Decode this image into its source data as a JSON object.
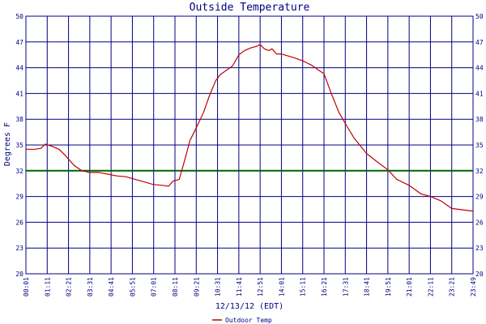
{
  "colors": {
    "background": "#ffffff",
    "grid": "#000080",
    "series": "#c00000",
    "reference_line": "#006400",
    "text": "#000080"
  },
  "chart_data": {
    "type": "line",
    "title": "Outside Temperature",
    "xlabel": "12/13/12 (EDT)",
    "ylabel": "Degrees F",
    "ylim": [
      20,
      50
    ],
    "yticks": [
      20,
      23,
      26,
      29,
      32,
      35,
      38,
      41,
      44,
      47,
      50
    ],
    "xticks": [
      "00:01",
      "01:11",
      "02:21",
      "03:31",
      "04:41",
      "05:51",
      "07:01",
      "08:11",
      "09:21",
      "10:31",
      "11:41",
      "12:51",
      "14:01",
      "15:11",
      "16:21",
      "17:31",
      "18:41",
      "19:51",
      "21:01",
      "22:11",
      "23:21",
      "23:49"
    ],
    "grid": true,
    "reference_line": 32,
    "legend_position": "bottom-left",
    "series": [
      {
        "name": "Outdoor Temp",
        "x": [
          "00:01",
          "00:30",
          "00:50",
          "01:05",
          "01:30",
          "01:50",
          "02:10",
          "02:40",
          "03:05",
          "03:31",
          "04:00",
          "04:30",
          "05:00",
          "05:30",
          "06:00",
          "06:30",
          "07:00",
          "07:30",
          "07:50",
          "08:05",
          "08:25",
          "08:45",
          "09:00",
          "09:21",
          "09:45",
          "10:05",
          "10:25",
          "10:40",
          "11:00",
          "11:20",
          "11:41",
          "12:00",
          "12:20",
          "12:40",
          "12:51",
          "13:05",
          "13:20",
          "13:30",
          "13:45",
          "14:01",
          "14:20",
          "14:40",
          "15:11",
          "15:40",
          "16:00",
          "16:21",
          "16:45",
          "17:10",
          "17:31",
          "18:00",
          "18:41",
          "19:10",
          "19:51",
          "20:20",
          "21:01",
          "21:40",
          "22:11",
          "22:45",
          "23:21",
          "23:49"
        ],
        "y": [
          34.5,
          34.5,
          34.6,
          35.1,
          34.8,
          34.5,
          33.8,
          32.6,
          32.0,
          31.8,
          31.8,
          31.6,
          31.4,
          31.3,
          31.0,
          30.7,
          30.4,
          30.3,
          30.2,
          30.8,
          31.0,
          33.5,
          35.5,
          37.0,
          38.8,
          40.8,
          42.5,
          43.2,
          43.7,
          44.2,
          45.5,
          46.0,
          46.3,
          46.5,
          46.7,
          46.2,
          46.0,
          46.2,
          45.6,
          45.6,
          45.4,
          45.2,
          44.8,
          44.3,
          43.8,
          43.3,
          41.0,
          38.8,
          37.5,
          35.8,
          34.0,
          33.2,
          32.1,
          31.0,
          30.3,
          29.3,
          29.0,
          28.5,
          27.6,
          27.3
        ]
      }
    ]
  }
}
